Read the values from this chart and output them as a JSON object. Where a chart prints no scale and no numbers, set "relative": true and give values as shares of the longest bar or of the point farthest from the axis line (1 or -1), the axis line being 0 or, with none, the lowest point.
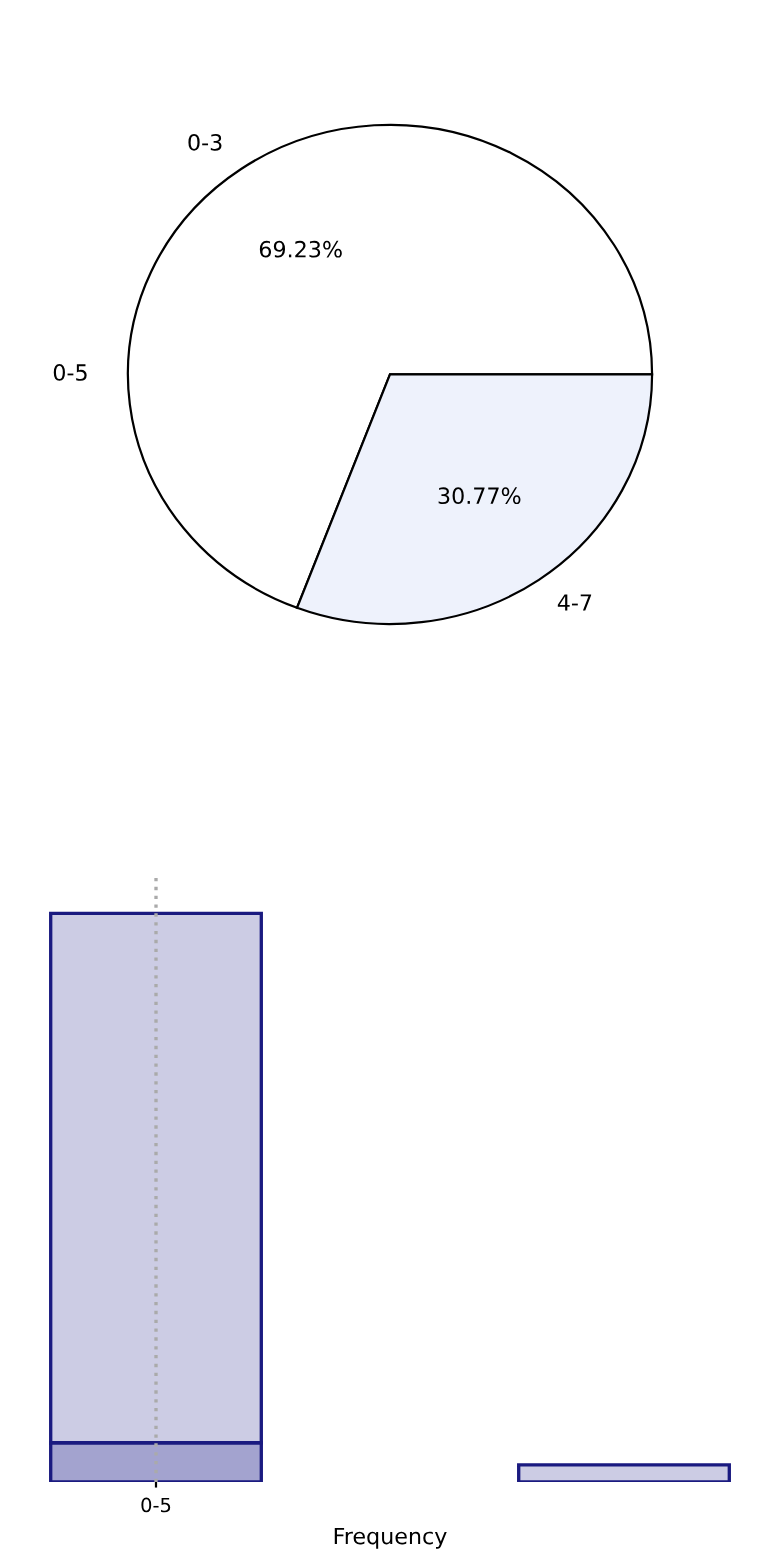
{
  "chart_data": [
    {
      "type": "pie",
      "categories": [
        "0-3",
        "4-7"
      ],
      "values": [
        69.23,
        30.77
      ],
      "colors": [
        "#ffffff",
        "#eef2fc"
      ],
      "value_labels": [
        "69.23%",
        "30.77%"
      ],
      "annotations": [
        "0-5"
      ]
    },
    {
      "type": "bar",
      "relative": true,
      "stacked": true,
      "categories": [
        "0-5",
        null
      ],
      "xlabel": "Frequency",
      "ref_lines": [
        {
          "axis": "x",
          "value": "0-5",
          "line_style": "dotted",
          "color": "#aaaaaa"
        }
      ],
      "series": [
        {
          "color": "#a3a3cf",
          "values": [
            0.069,
            0
          ]
        },
        {
          "color": "#cccce4",
          "values": [
            0.931,
            0.03
          ]
        }
      ]
    }
  ]
}
